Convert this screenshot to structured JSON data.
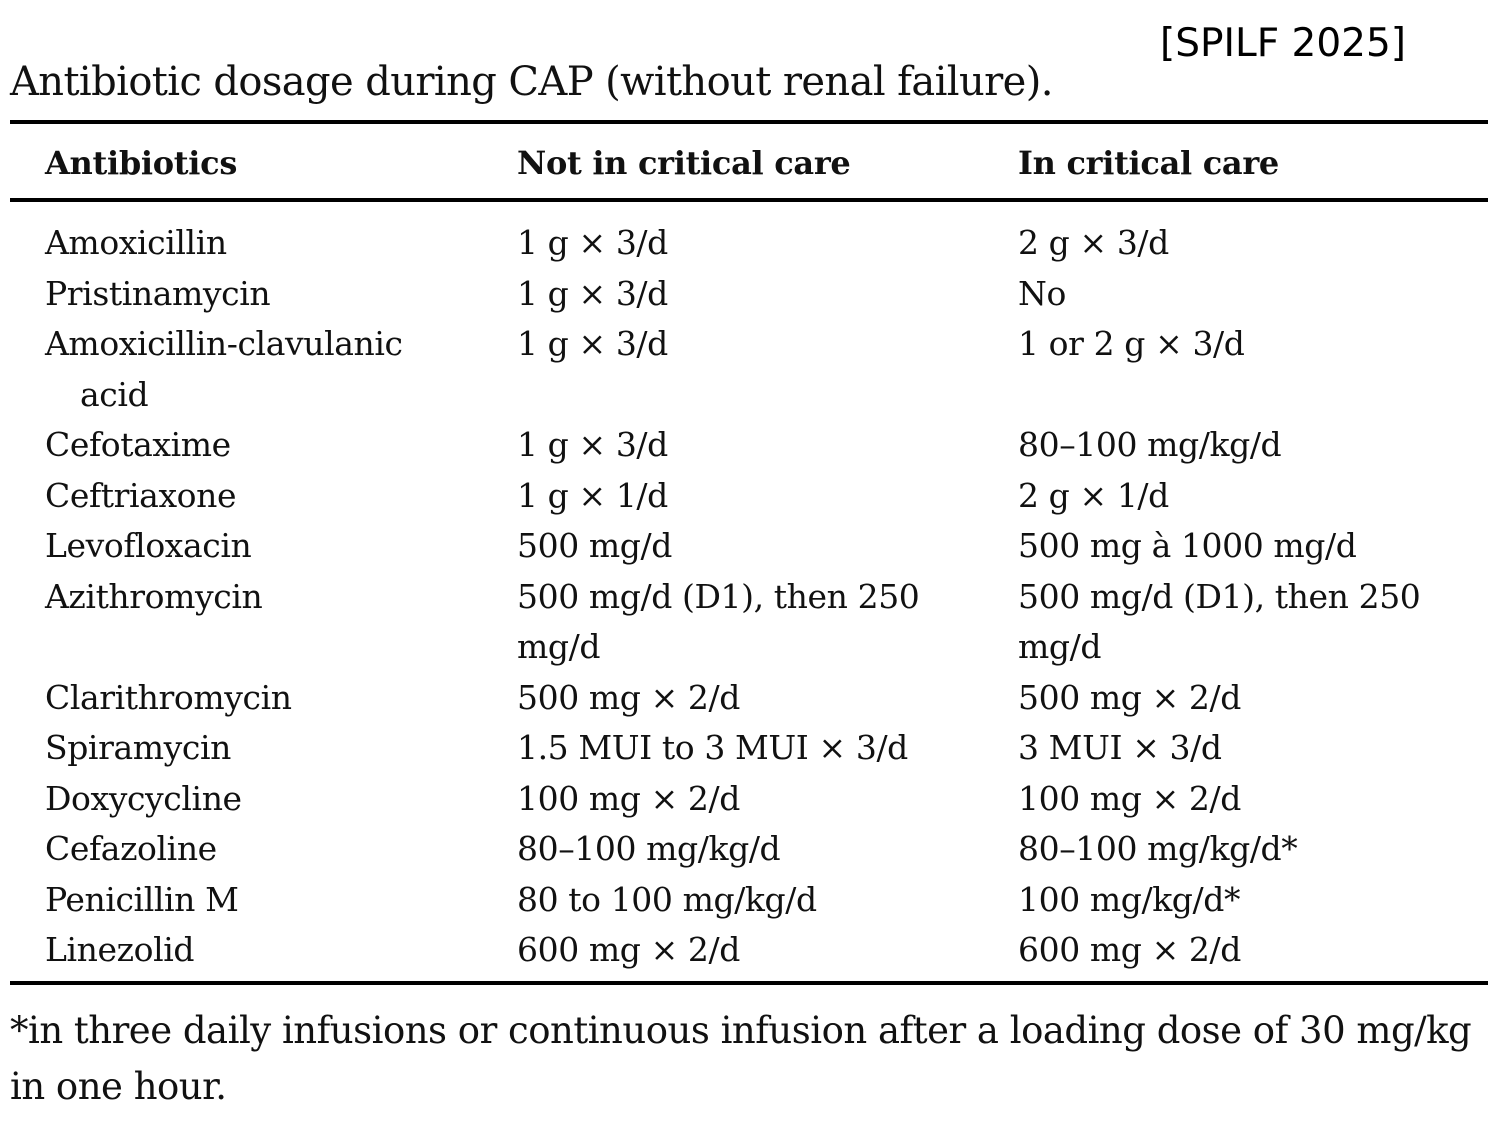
{
  "source_tag": "[SPILF 2025]",
  "table": {
    "title": "Antibiotic dosage during CAP (without renal failure).",
    "headers": [
      "Antibiotics",
      "Not in critical care",
      "In critical care"
    ],
    "rows": [
      {
        "antibiotic": "Amoxicillin",
        "not_critical": "1 g × 3/d",
        "critical": "2 g × 3/d"
      },
      {
        "antibiotic": "Pristinamycin",
        "not_critical": "1 g × 3/d",
        "critical": "No"
      },
      {
        "antibiotic": "Amoxicillin-clavulanic acid",
        "not_critical": "1 g × 3/d",
        "critical": "1 or 2 g × 3/d"
      },
      {
        "antibiotic": "Cefotaxime",
        "not_critical": "1 g × 3/d",
        "critical": "80–100 mg/kg/d"
      },
      {
        "antibiotic": "Ceftriaxone",
        "not_critical": "1 g × 1/d",
        "critical": "2 g × 1/d"
      },
      {
        "antibiotic": "Levofloxacin",
        "not_critical": "500 mg/d",
        "critical": "500 mg à 1000 mg/d"
      },
      {
        "antibiotic": "Azithromycin",
        "not_critical": "500 mg/d (D1), then 250 mg/d",
        "critical": "500 mg/d (D1), then 250 mg/d"
      },
      {
        "antibiotic": "Clarithromycin",
        "not_critical": "500 mg × 2/d",
        "critical": "500 mg × 2/d"
      },
      {
        "antibiotic": "Spiramycin",
        "not_critical": "1.5 MUI to 3 MUI × 3/d",
        "critical": "3 MUI × 3/d"
      },
      {
        "antibiotic": "Doxycycline",
        "not_critical": "100 mg × 2/d",
        "critical": "100 mg × 2/d"
      },
      {
        "antibiotic": "Cefazoline",
        "not_critical": "80–100 mg/kg/d",
        "critical": "80–100 mg/kg/d*"
      },
      {
        "antibiotic": "Penicillin M",
        "not_critical": "80 to 100 mg/kg/d",
        "critical": "100 mg/kg/d*"
      },
      {
        "antibiotic": "Linezolid",
        "not_critical": "600 mg × 2/d",
        "critical": "600 mg × 2/d"
      }
    ],
    "footnote": "*in three daily infusions or continuous infusion after a loading dose of 30 mg/kg in one hour."
  }
}
